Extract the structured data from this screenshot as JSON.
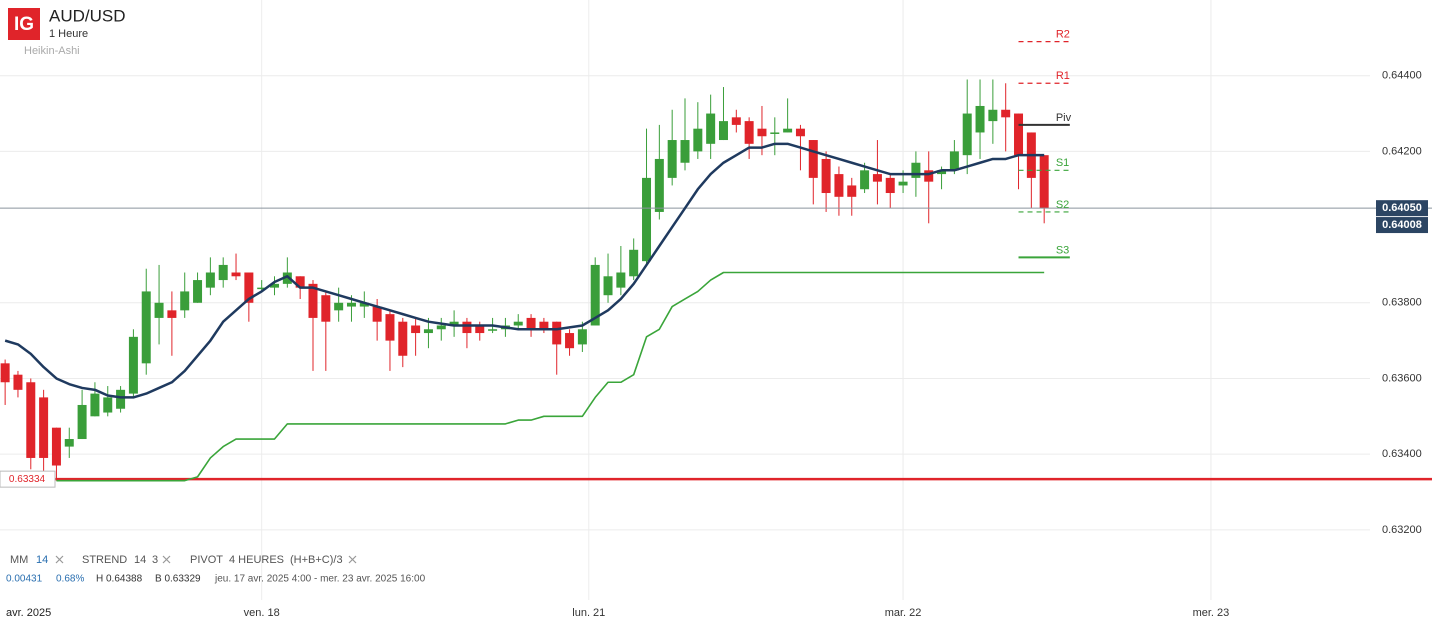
{
  "chart_data": {
    "type": "candlestick",
    "title": "AUD/USD",
    "subtitle": "1 Heure",
    "chart_style": "Heikin-Ashi",
    "logo": "IG",
    "up_color": "#3a9e3a",
    "down_color": "#e0242a",
    "x": [
      0,
      1,
      2,
      3,
      4,
      5,
      6,
      7,
      8,
      9,
      10,
      11,
      12,
      13,
      14,
      15,
      16,
      17,
      18,
      19,
      20,
      21,
      22,
      23,
      24,
      25,
      26,
      27,
      28,
      29,
      30,
      31,
      32,
      33,
      34,
      35,
      36,
      37,
      38,
      39,
      40,
      41,
      42,
      43,
      44,
      45,
      46,
      47,
      48,
      49,
      50,
      51,
      52,
      53,
      54,
      55,
      56,
      57,
      58,
      59,
      60,
      61,
      62,
      63,
      64,
      65,
      66,
      67,
      68,
      69,
      70,
      71,
      72,
      73,
      74,
      75,
      76,
      77,
      78,
      79,
      80,
      81
    ],
    "open": [
      0.6364,
      0.6361,
      0.6359,
      0.6355,
      0.6347,
      0.6342,
      0.6344,
      0.635,
      0.6351,
      0.6352,
      0.6356,
      0.6364,
      0.6376,
      0.6378,
      0.6378,
      0.638,
      0.6384,
      0.6386,
      0.6388,
      0.6388,
      0.6384,
      0.6384,
      0.6385,
      0.6387,
      0.6385,
      0.6382,
      0.6378,
      0.6379,
      0.6379,
      0.6379,
      0.6377,
      0.6375,
      0.6374,
      0.6372,
      0.6373,
      0.6374,
      0.6375,
      0.6374,
      0.6373,
      0.6373,
      0.6374,
      0.6376,
      0.6375,
      0.6375,
      0.6372,
      0.6369,
      0.6374,
      0.6382,
      0.6384,
      0.6387,
      0.6391,
      0.6404,
      0.6413,
      0.6417,
      0.642,
      0.6422,
      0.6423,
      0.6429,
      0.6428,
      0.6426,
      0.6425,
      0.6425,
      0.6426,
      0.6423,
      0.6418,
      0.6414,
      0.6411,
      0.641,
      0.6414,
      0.6413,
      0.6411,
      0.6413,
      0.6415,
      0.6414,
      0.6415,
      0.6419,
      0.6425,
      0.6428,
      0.6431,
      0.643,
      0.6425,
      0.6419
    ],
    "high": [
      0.6365,
      0.6362,
      0.636,
      0.6357,
      0.6347,
      0.6347,
      0.6357,
      0.6359,
      0.6358,
      0.6358,
      0.6373,
      0.6389,
      0.639,
      0.6383,
      0.6388,
      0.6388,
      0.6392,
      0.6392,
      0.6393,
      0.6388,
      0.6386,
      0.6387,
      0.6392,
      0.6387,
      0.6386,
      0.6383,
      0.6384,
      0.6382,
      0.6383,
      0.6381,
      0.6378,
      0.6376,
      0.6376,
      0.6376,
      0.6376,
      0.6378,
      0.6376,
      0.6375,
      0.6376,
      0.6376,
      0.6377,
      0.6377,
      0.6376,
      0.6375,
      0.6373,
      0.6375,
      0.6392,
      0.6393,
      0.6395,
      0.6397,
      0.6426,
      0.6427,
      0.6431,
      0.6434,
      0.6433,
      0.6435,
      0.6437,
      0.6431,
      0.6429,
      0.6432,
      0.6429,
      0.6434,
      0.6427,
      0.6423,
      0.642,
      0.6416,
      0.6413,
      0.6417,
      0.6423,
      0.6414,
      0.6415,
      0.642,
      0.642,
      0.6416,
      0.6423,
      0.6439,
      0.6439,
      0.6439,
      0.6438,
      0.643,
      0.6425,
      0.6419
    ],
    "low": [
      0.6353,
      0.6355,
      0.6336,
      0.6334,
      0.6333,
      0.6339,
      0.6344,
      0.635,
      0.635,
      0.6351,
      0.6355,
      0.6361,
      0.6369,
      0.6366,
      0.6376,
      0.638,
      0.6382,
      0.6384,
      0.6386,
      0.6375,
      0.6383,
      0.6382,
      0.6384,
      0.6381,
      0.6362,
      0.6362,
      0.6375,
      0.6375,
      0.6376,
      0.637,
      0.6362,
      0.6363,
      0.6366,
      0.6368,
      0.637,
      0.6371,
      0.6368,
      0.637,
      0.6372,
      0.6371,
      0.6373,
      0.6371,
      0.6372,
      0.6361,
      0.6366,
      0.6367,
      0.6374,
      0.638,
      0.6382,
      0.6386,
      0.639,
      0.6402,
      0.6411,
      0.6415,
      0.6418,
      0.6418,
      0.6423,
      0.6425,
      0.6418,
      0.6419,
      0.6419,
      0.6425,
      0.6415,
      0.6406,
      0.6404,
      0.6403,
      0.6403,
      0.6409,
      0.6406,
      0.6405,
      0.6409,
      0.6408,
      0.6401,
      0.641,
      0.6414,
      0.6414,
      0.6418,
      0.6422,
      0.642,
      0.641,
      0.6405,
      0.6401
    ],
    "close": [
      0.6359,
      0.6357,
      0.6339,
      0.6339,
      0.6337,
      0.6344,
      0.6353,
      0.6356,
      0.6355,
      0.6357,
      0.6371,
      0.6383,
      0.638,
      0.6376,
      0.6383,
      0.6386,
      0.6388,
      0.639,
      0.6387,
      0.638,
      0.6384,
      0.6385,
      0.6388,
      0.6384,
      0.6376,
      0.6375,
      0.638,
      0.638,
      0.638,
      0.6375,
      0.637,
      0.6366,
      0.6372,
      0.6373,
      0.6374,
      0.6375,
      0.6372,
      0.6372,
      0.6373,
      0.6374,
      0.6375,
      0.6373,
      0.6373,
      0.6369,
      0.6368,
      0.6373,
      0.639,
      0.6387,
      0.6388,
      0.6394,
      0.6413,
      0.6418,
      0.6423,
      0.6423,
      0.6426,
      0.643,
      0.6428,
      0.6427,
      0.6422,
      0.6424,
      0.6425,
      0.6426,
      0.6424,
      0.6413,
      0.6409,
      0.6408,
      0.6408,
      0.6415,
      0.6412,
      0.6409,
      0.6412,
      0.6417,
      0.6412,
      0.6415,
      0.642,
      0.643,
      0.6432,
      0.6431,
      0.6429,
      0.6419,
      0.6413,
      0.6405
    ],
    "xlim": [
      -0.4,
      106.4
    ],
    "ylim": [
      0.6316,
      0.646
    ],
    "xticks": [
      {
        "value": 20,
        "label": "ven. 18"
      },
      {
        "value": 45.5,
        "label": "lun. 21"
      },
      {
        "value": 70,
        "label": "mar. 22"
      },
      {
        "value": 94,
        "label": "mer. 23"
      }
    ],
    "x_period_label": "avr. 2025",
    "yticks": [
      {
        "value": 0.632,
        "label": "0.63200"
      },
      {
        "value": 0.634,
        "label": "0.63400"
      },
      {
        "value": 0.636,
        "label": "0.63600"
      },
      {
        "value": 0.638,
        "label": "0.63800"
      },
      {
        "value": 0.642,
        "label": "0.64200"
      },
      {
        "value": 0.644,
        "label": "0.64400"
      }
    ],
    "grid": true,
    "price_lines": [
      {
        "value": 0.63334,
        "label": "0.63334",
        "color": "#e0242a",
        "box": "left"
      },
      {
        "value": 0.6405,
        "label": "0.64050",
        "color": "#8a949e",
        "box": "right"
      }
    ],
    "last_price": {
      "value": 0.64008,
      "label": "0.64008"
    },
    "indicators": [
      {
        "name": "MM",
        "params": [
          14
        ],
        "color": "#1f3a5f",
        "values": [
          0.637,
          0.6369,
          0.63665,
          0.6363,
          0.636,
          0.63585,
          0.63575,
          0.6357,
          0.63555,
          0.6355,
          0.6355,
          0.6356,
          0.63575,
          0.6359,
          0.6362,
          0.6366,
          0.637,
          0.6375,
          0.6378,
          0.6381,
          0.6383,
          0.63855,
          0.6387,
          0.6384,
          0.6384,
          0.6383,
          0.6382,
          0.6381,
          0.638,
          0.6379,
          0.6378,
          0.6377,
          0.6376,
          0.6375,
          0.63745,
          0.6374,
          0.6374,
          0.6374,
          0.6374,
          0.63735,
          0.6373,
          0.6373,
          0.6373,
          0.6373,
          0.63735,
          0.6374,
          0.6376,
          0.6378,
          0.6381,
          0.6385,
          0.639,
          0.6395,
          0.64,
          0.6405,
          0.641,
          0.6414,
          0.6417,
          0.6419,
          0.6421,
          0.6421,
          0.6422,
          0.6422,
          0.6421,
          0.642,
          0.6419,
          0.6418,
          0.6417,
          0.6416,
          0.6415,
          0.6414,
          0.6414,
          0.6414,
          0.6414,
          0.6415,
          0.6415,
          0.6416,
          0.6417,
          0.6418,
          0.6418,
          0.6419,
          0.6419,
          0.6419
        ]
      },
      {
        "name": "STREND",
        "params": [
          14,
          3
        ],
        "color": "#3aa53a",
        "values": [
          null,
          null,
          null,
          null,
          0.6333,
          0.6333,
          0.6333,
          0.6333,
          0.6333,
          0.6333,
          0.6333,
          0.6333,
          0.6333,
          0.6333,
          0.6333,
          0.6334,
          0.6339,
          0.6342,
          0.6344,
          0.6344,
          0.6344,
          0.6344,
          0.6348,
          0.6348,
          0.6348,
          0.6348,
          0.6348,
          0.6348,
          0.6348,
          0.6348,
          0.6348,
          0.6348,
          0.6348,
          0.6348,
          0.6348,
          0.6348,
          0.6348,
          0.6348,
          0.6348,
          0.6348,
          0.6349,
          0.6349,
          0.635,
          0.635,
          0.635,
          0.635,
          0.6355,
          0.6359,
          0.6359,
          0.6361,
          0.6371,
          0.6373,
          0.6379,
          0.6381,
          0.6383,
          0.6386,
          0.6388,
          0.6388,
          0.6388,
          0.6388,
          0.6388,
          0.6388,
          0.6388,
          0.6388,
          0.6388,
          0.6388,
          0.6388,
          0.6388,
          0.6388,
          0.6388,
          0.6388,
          0.6388,
          0.6388,
          0.6388,
          0.6388,
          0.6388,
          0.6388,
          0.6388,
          0.6388,
          0.6388,
          0.6388,
          0.6388
        ]
      },
      {
        "name": "PIVOT",
        "params": [
          "4 HEURES",
          "(H+B+C)/3"
        ],
        "x_range": [
          79,
          83
        ],
        "levels": [
          {
            "name": "R2",
            "value": 0.6449,
            "color": "#e0242a",
            "dash": true
          },
          {
            "name": "R1",
            "value": 0.6438,
            "color": "#e0242a",
            "dash": true
          },
          {
            "name": "Piv",
            "value": 0.6427,
            "color": "#333333",
            "dash": false
          },
          {
            "name": "S1",
            "value": 0.6415,
            "color": "#3aa53a",
            "dash": true
          },
          {
            "name": "S2",
            "value": 0.6404,
            "color": "#3aa53a",
            "dash": true
          },
          {
            "name": "S3",
            "value": 0.6392,
            "color": "#3aa53a",
            "dash": false
          }
        ]
      }
    ],
    "stats": {
      "change": "0.00431",
      "change_pct": "0.68%",
      "high": "H 0.64388",
      "low": "B 0.63329",
      "range": "jeu. 17 avr. 2025 4:00 - mer. 23 avr. 2025 16:00"
    }
  }
}
